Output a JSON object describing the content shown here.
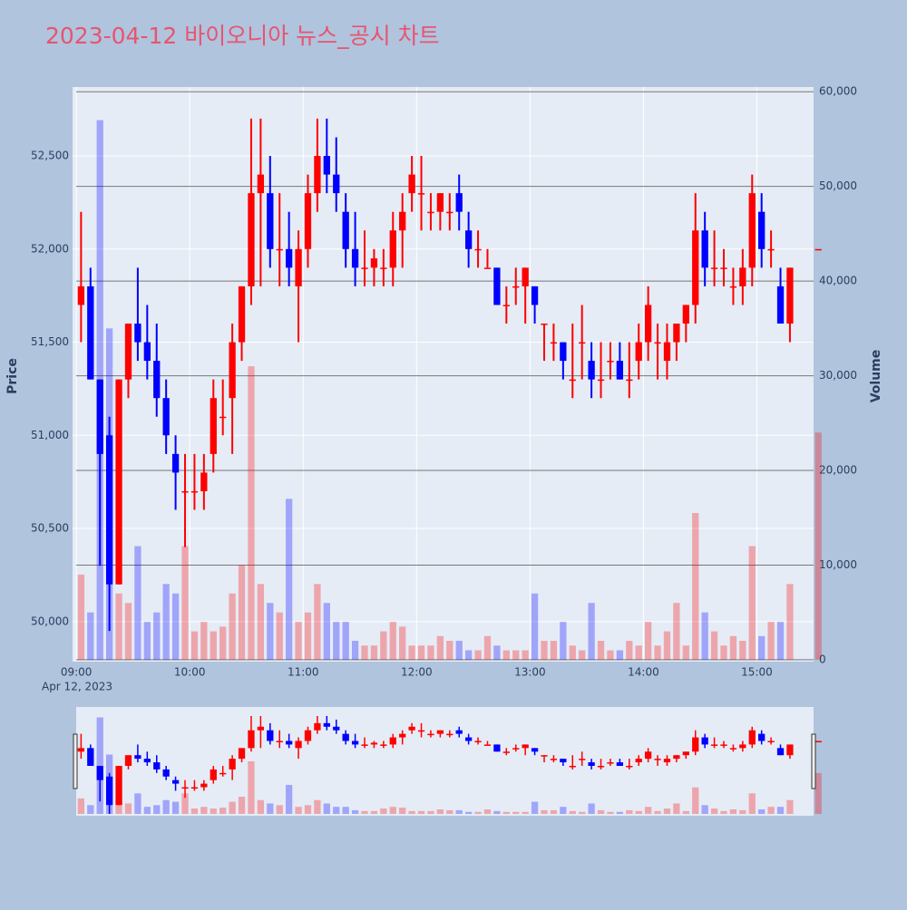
{
  "chart_data": {
    "type": "candlestick",
    "title": "2023-04-12 바이오니아 뉴스_공시 차트",
    "x": [
      "09:00",
      "09:05",
      "09:10",
      "09:15",
      "09:20",
      "09:25",
      "09:30",
      "09:35",
      "09:40",
      "09:45",
      "09:50",
      "09:55",
      "10:00",
      "10:05",
      "10:10",
      "10:15",
      "10:20",
      "10:25",
      "10:30",
      "10:35",
      "10:40",
      "10:45",
      "10:50",
      "10:55",
      "11:00",
      "11:05",
      "11:10",
      "11:15",
      "11:20",
      "11:25",
      "11:30",
      "11:35",
      "11:40",
      "11:45",
      "11:50",
      "11:55",
      "12:00",
      "12:05",
      "12:10",
      "12:15",
      "12:20",
      "12:25",
      "12:30",
      "12:35",
      "12:40",
      "12:45",
      "12:50",
      "12:55",
      "13:00",
      "13:05",
      "13:10",
      "13:15",
      "13:20",
      "13:25",
      "13:30",
      "13:35",
      "13:40",
      "13:45",
      "13:50",
      "13:55",
      "14:00",
      "14:05",
      "14:10",
      "14:15",
      "14:20",
      "14:25",
      "14:30",
      "14:35",
      "14:40",
      "14:45",
      "14:50",
      "14:55",
      "15:00",
      "15:05",
      "15:10",
      "15:15",
      "15:30"
    ],
    "open": [
      51700,
      51800,
      51300,
      51000,
      50200,
      51300,
      51600,
      51500,
      51400,
      51200,
      50900,
      50700,
      50700,
      50700,
      50900,
      51100,
      51200,
      51500,
      51800,
      52300,
      52300,
      52000,
      52000,
      51800,
      52000,
      52300,
      52500,
      52400,
      52200,
      52000,
      51900,
      51900,
      51900,
      51900,
      52100,
      52300,
      52300,
      52200,
      52200,
      52200,
      52300,
      52100,
      52000,
      51900,
      51900,
      51700,
      51800,
      51800,
      51800,
      51600,
      51500,
      51500,
      51300,
      51500,
      51400,
      51300,
      51400,
      51400,
      51300,
      51400,
      51500,
      51500,
      51400,
      51500,
      51600,
      51700,
      52100,
      51900,
      51900,
      51800,
      51800,
      51900,
      52200,
      52000,
      51800,
      51600,
      52000
    ],
    "high": [
      52200,
      51900,
      51300,
      51100,
      51300,
      51600,
      51900,
      51700,
      51600,
      51300,
      51000,
      50900,
      50900,
      50900,
      51300,
      51300,
      51600,
      51800,
      52700,
      52700,
      52500,
      52300,
      52200,
      52100,
      52400,
      52700,
      52700,
      52600,
      52300,
      52200,
      52100,
      52000,
      52000,
      52200,
      52300,
      52500,
      52500,
      52300,
      52300,
      52300,
      52400,
      52200,
      52100,
      52000,
      51900,
      51800,
      51900,
      51900,
      51800,
      51600,
      51600,
      51500,
      51600,
      51700,
      51500,
      51500,
      51500,
      51500,
      51500,
      51600,
      51800,
      51600,
      51600,
      51600,
      51700,
      52300,
      52200,
      52100,
      52000,
      51900,
      52000,
      52400,
      52300,
      52100,
      51900,
      51900,
      52000
    ],
    "low": [
      51500,
      51300,
      50300,
      49950,
      50200,
      51200,
      51400,
      51300,
      51100,
      50900,
      50600,
      50400,
      50600,
      50600,
      50800,
      51000,
      50900,
      51400,
      51700,
      51800,
      51900,
      51800,
      51800,
      51500,
      51900,
      52200,
      52300,
      52200,
      51900,
      51800,
      51800,
      51800,
      51800,
      51800,
      51900,
      52200,
      52100,
      52100,
      52100,
      52100,
      52100,
      51900,
      51900,
      51900,
      51700,
      51600,
      51700,
      51600,
      51600,
      51400,
      51400,
      51300,
      51200,
      51300,
      51200,
      51200,
      51300,
      51300,
      51200,
      51300,
      51400,
      51300,
      51300,
      51400,
      51500,
      51600,
      51800,
      51800,
      51800,
      51700,
      51700,
      51800,
      51900,
      51900,
      51600,
      51500,
      52000
    ],
    "close": [
      51800,
      51300,
      50900,
      50200,
      51300,
      51600,
      51500,
      51400,
      51200,
      51000,
      50800,
      50700,
      50700,
      50800,
      51200,
      51100,
      51500,
      51800,
      52300,
      52400,
      52000,
      52000,
      51900,
      52000,
      52300,
      52500,
      52400,
      52300,
      52000,
      51900,
      51900,
      51950,
      51900,
      52100,
      52200,
      52400,
      52300,
      52200,
      52300,
      52200,
      52200,
      52000,
      52000,
      51900,
      51700,
      51700,
      51800,
      51900,
      51700,
      51600,
      51500,
      51400,
      51300,
      51500,
      51300,
      51300,
      51400,
      51300,
      51300,
      51500,
      51700,
      51500,
      51500,
      51600,
      51700,
      52100,
      51900,
      51900,
      51900,
      51800,
      51900,
      52300,
      52000,
      52000,
      51600,
      51900,
      52000
    ],
    "volume": [
      9000,
      5000,
      57000,
      35000,
      7000,
      6000,
      12000,
      4000,
      5000,
      8000,
      7000,
      12000,
      3000,
      4000,
      3000,
      3500,
      7000,
      10000,
      31000,
      8000,
      6000,
      5000,
      17000,
      4000,
      5000,
      8000,
      6000,
      4000,
      4000,
      2000,
      1500,
      1500,
      3000,
      4000,
      3500,
      1500,
      1500,
      1500,
      2500,
      2000,
      2000,
      1000,
      1000,
      2500,
      1500,
      1000,
      1000,
      1000,
      7000,
      2000,
      2000,
      4000,
      1500,
      1000,
      6000,
      2000,
      1000,
      1000,
      2000,
      1500,
      4000,
      1500,
      3000,
      6000,
      1500,
      15500,
      5000,
      3000,
      1500,
      2500,
      2000,
      12000,
      2500,
      4000,
      4000,
      8000,
      24000
    ],
    "increasing_color": "#ff0000",
    "decreasing_color": "#0000ff",
    "volume_opacity": 0.3,
    "xlim": [
      "08:58",
      "15:30"
    ],
    "xticks": [
      "09:00",
      "10:00",
      "11:00",
      "12:00",
      "13:00",
      "14:00",
      "15:00"
    ],
    "date_label": "Apr 12, 2023",
    "ylabel": "Price",
    "y2label": "Volume",
    "ylim": [
      49785,
      52870
    ],
    "yticks": [
      {
        "value": 50000,
        "label": "50,000"
      },
      {
        "value": 50500,
        "label": "50,500"
      },
      {
        "value": 51000,
        "label": "51,000"
      },
      {
        "value": 51500,
        "label": "51,500"
      },
      {
        "value": 52000,
        "label": "52,000"
      },
      {
        "value": 52500,
        "label": "52,500"
      }
    ],
    "y2lim": [
      -200,
      60500
    ],
    "y2ticks": [
      0,
      {
        "value": 10000,
        "label": "10,000"
      },
      {
        "value": 20000,
        "label": "20,000"
      },
      {
        "value": 30000,
        "label": "30,000"
      },
      {
        "value": 40000,
        "label": "40,000"
      },
      {
        "value": 50000,
        "label": "50,000"
      },
      {
        "value": 60000,
        "label": "60,000"
      }
    ],
    "grid": true,
    "rangeslider": true
  }
}
